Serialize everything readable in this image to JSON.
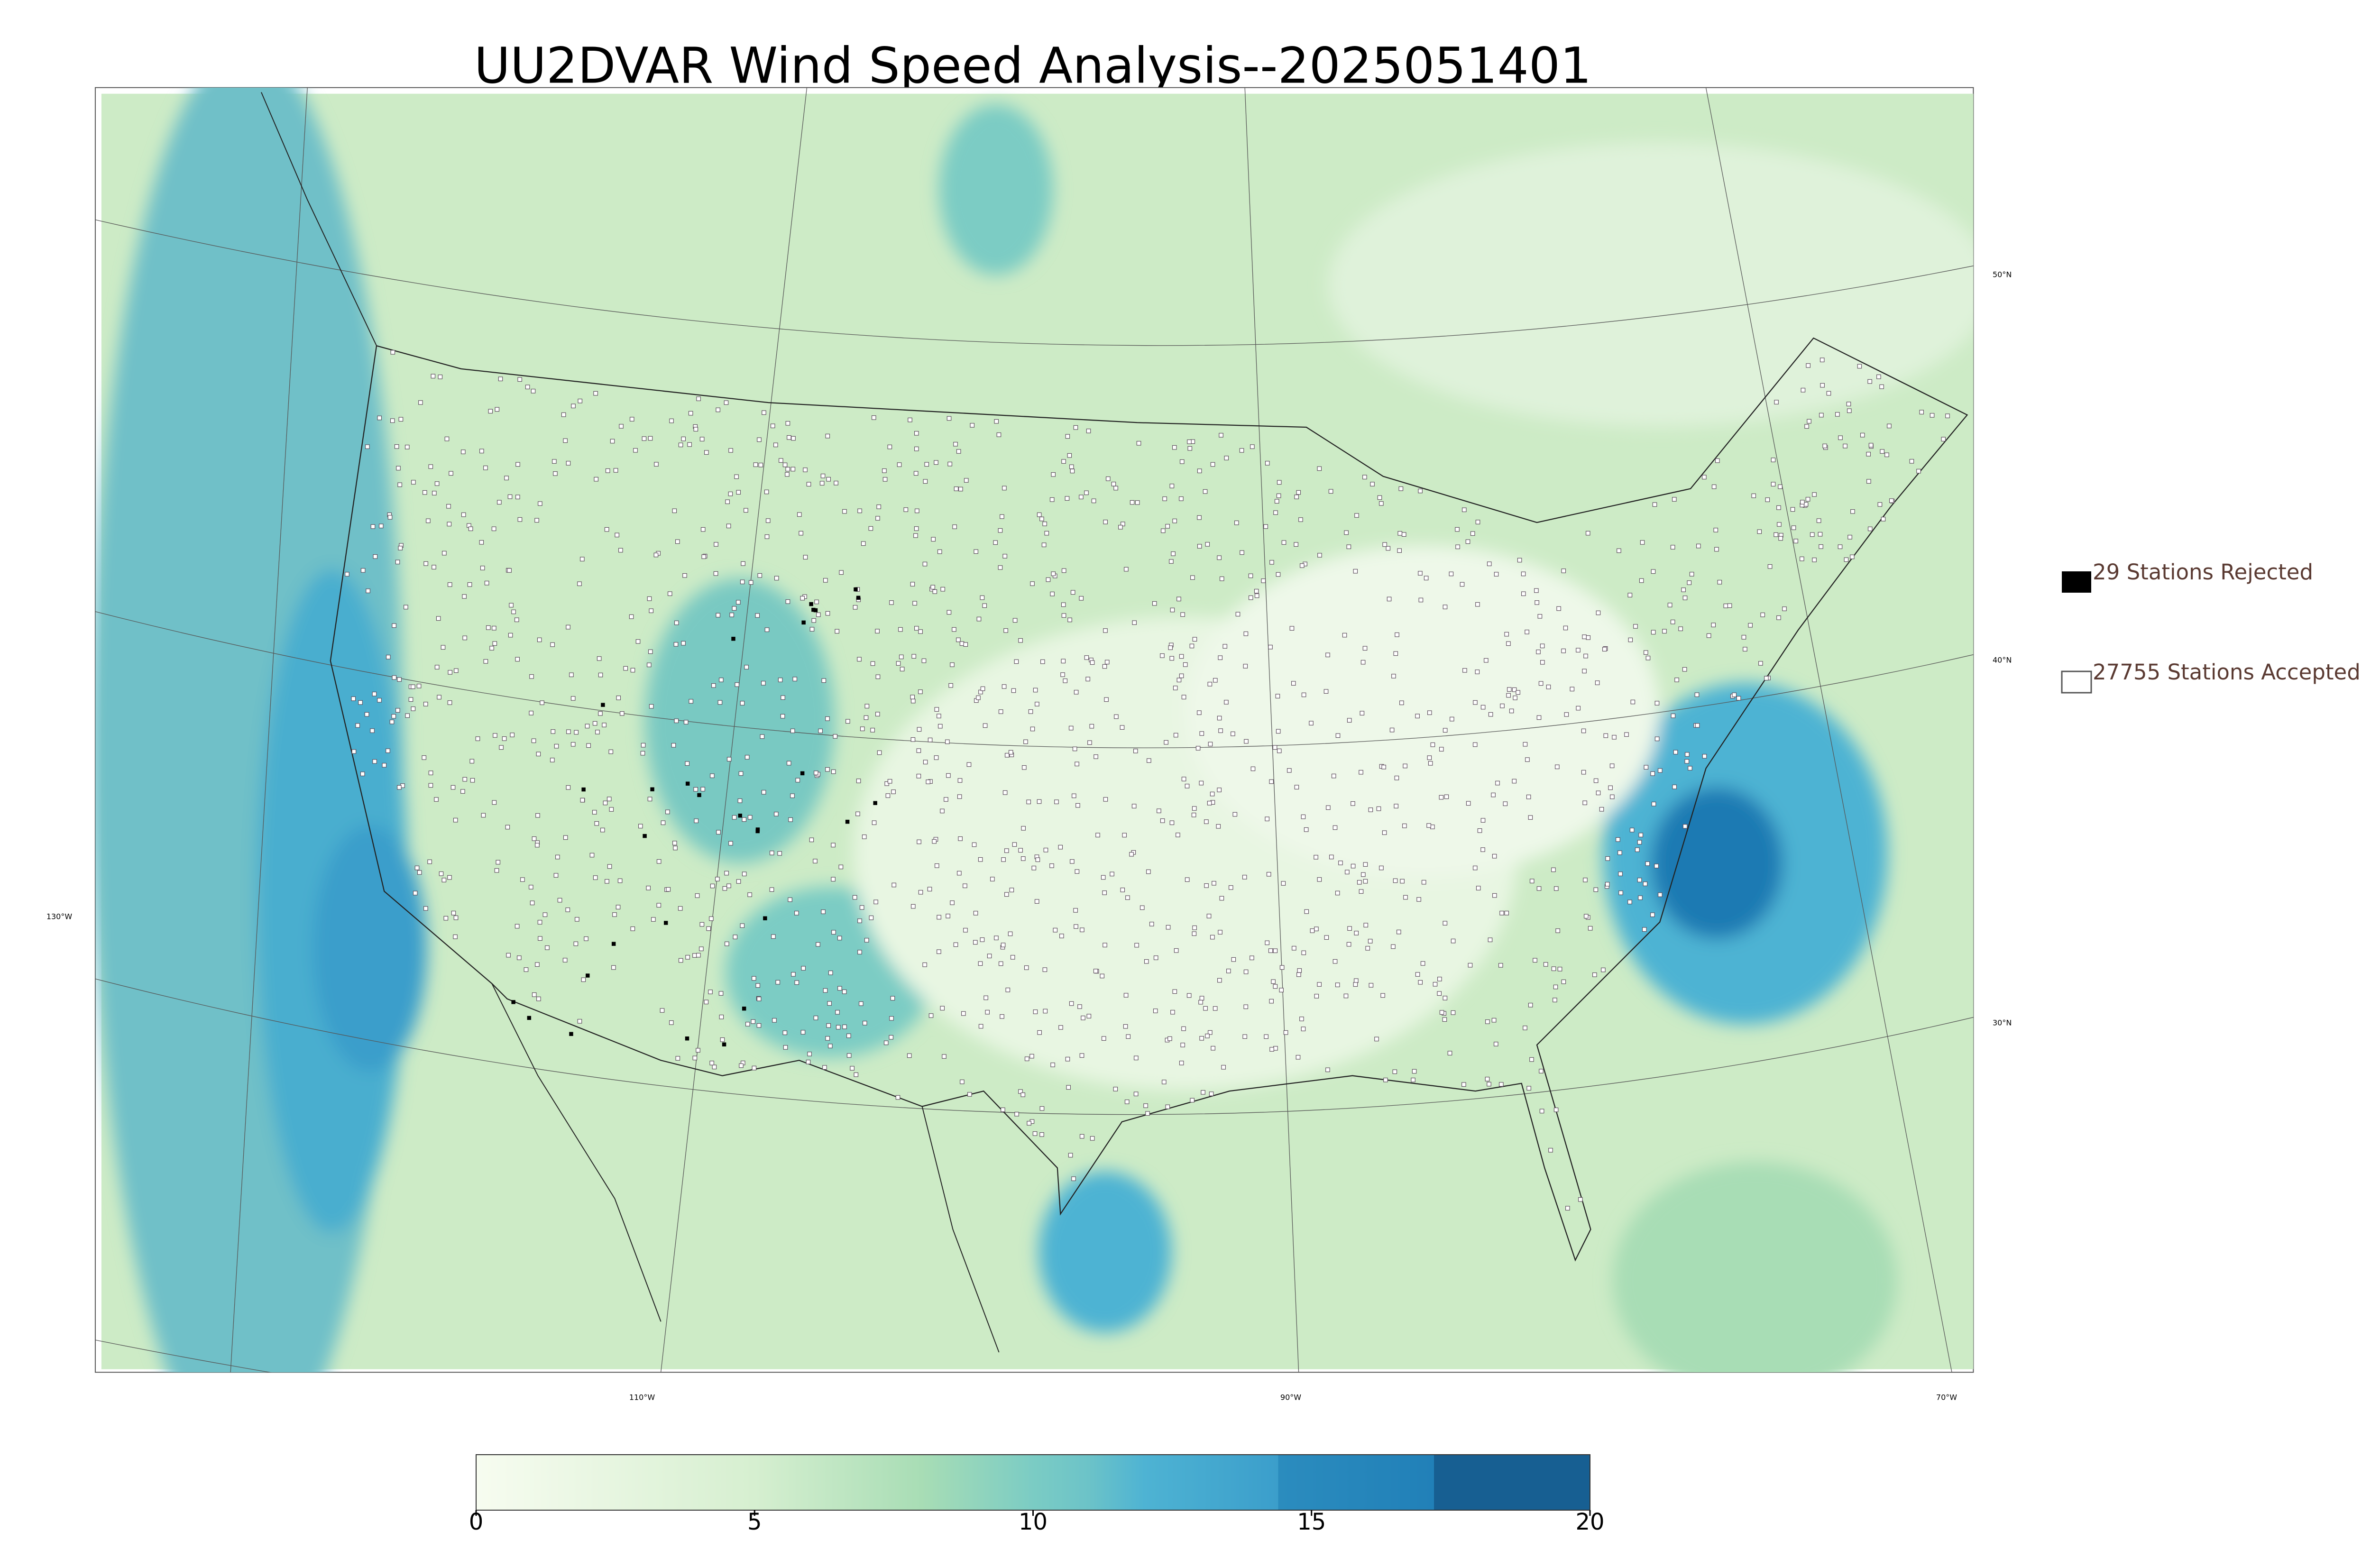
{
  "title": "UU2DVAR Wind Speed Analysis--2025051401",
  "legend": [
    {
      "label": "29 Stations Rejected"
    },
    {
      "label": "27755 Stations Accepted"
    }
  ],
  "colorbar": {
    "range": [
      0,
      20
    ],
    "ticks": [
      0,
      5,
      10,
      15,
      20
    ]
  },
  "graticule": {
    "lat_labels": [
      "50°N",
      "40°N",
      "30°N"
    ],
    "lon_labels": [
      "130°W",
      "110°W",
      "90°W",
      "70°W"
    ]
  }
}
